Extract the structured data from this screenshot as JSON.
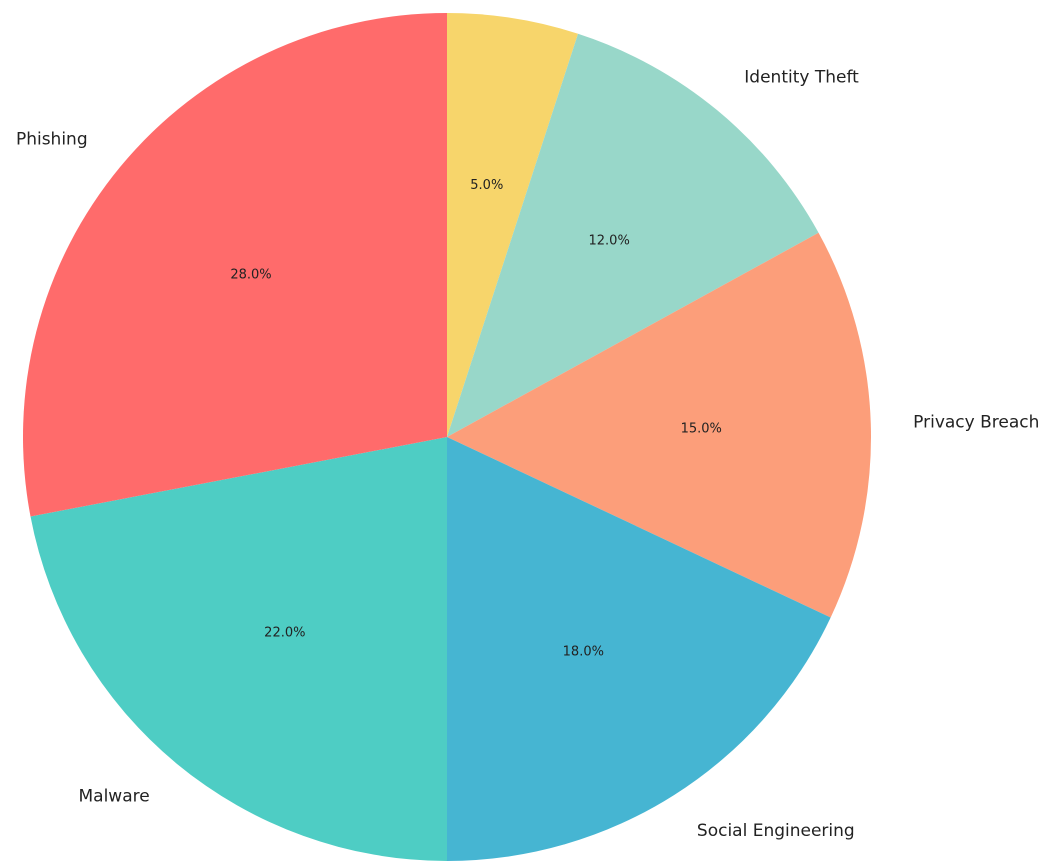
{
  "chart_data": {
    "type": "pie",
    "categories": [
      "5.0%",
      "Identity Theft",
      "Privacy Breach",
      "Social Engineering",
      "Malware",
      "Phishing"
    ],
    "slices": [
      {
        "label": "",
        "value": 5.0,
        "pct_label": "5.0%",
        "color": "#F7D56B"
      },
      {
        "label": "Identity Theft",
        "value": 12.0,
        "pct_label": "12.0%",
        "color": "#98D7C9"
      },
      {
        "label": "Privacy Breach",
        "value": 15.0,
        "pct_label": "15.0%",
        "color": "#FC9E7A"
      },
      {
        "label": "Social Engineering",
        "value": 18.0,
        "pct_label": "18.0%",
        "color": "#46B5D2"
      },
      {
        "label": "Malware",
        "value": 22.0,
        "pct_label": "22.0%",
        "color": "#4ECDC4"
      },
      {
        "label": "Phishing",
        "value": 28.0,
        "pct_label": "28.0%",
        "color": "#FF6B6B"
      }
    ],
    "start": "top",
    "direction": "clockwise",
    "legend": "none"
  }
}
